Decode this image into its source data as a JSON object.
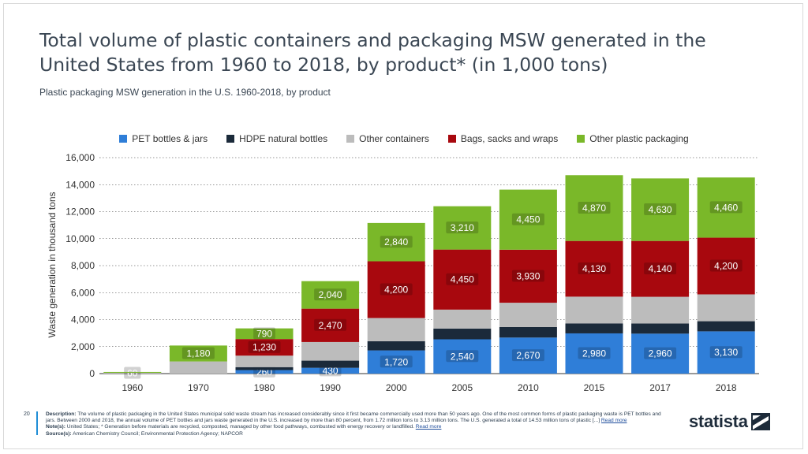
{
  "title": "Total volume of plastic containers and packaging MSW generated in the United States from 1960 to 2018, by product* (in 1,000 tons)",
  "subtitle": "Plastic packaging MSW generation in the U.S. 1960-2018, by product",
  "footer": {
    "page_number": "20",
    "description_label": "Description:",
    "description": "The volume of plastic packaging in the United States municipal solid waste stream has increased considerably since it first became commercially used more than 50 years ago. One of the most common forms of plastic packaging waste is PET bottles and jars. Between 2000 and 2018, the annual volume of PET bottles and jars waste generated in the U.S. increased by more than 80 percent, from 1.72 million tons to 3.13 million tons. The U.S. generated a total of 14.53 million tons of plastic [...]",
    "read_more": "Read more",
    "notes_label": "Note(s):",
    "notes": "United States; * Generation before materials are recycled, composted, managed by other food pathways, combusted with energy recovery or landfilled.",
    "notes_read_more": "Read more",
    "sources_label": "Source(s):",
    "sources": "American Chemistry Council; Environmental Protection Agency; NAPCOR"
  },
  "logo": {
    "text": "statista"
  },
  "chart_data": {
    "type": "bar",
    "stacked": true,
    "categories": [
      "1960",
      "1970",
      "1980",
      "1990",
      "2000",
      "2005",
      "2010",
      "2015",
      "2017",
      "2018"
    ],
    "ylabel": "Waste generation in thousand tons",
    "xlabel": "",
    "ylim": [
      0,
      16000
    ],
    "yticks": [
      0,
      2000,
      4000,
      6000,
      8000,
      10000,
      12000,
      14000,
      16000
    ],
    "ytick_labels": [
      "0",
      "2,000",
      "4,000",
      "6,000",
      "8,000",
      "10,000",
      "12,000",
      "14,000",
      "16,000"
    ],
    "grid": true,
    "legend_position": "top-center",
    "series": [
      {
        "name": "PET bottles & jars",
        "color": "#2f7ed8",
        "values": [
          0,
          0,
          260,
          430,
          1720,
          2540,
          2670,
          2980,
          2960,
          3130
        ],
        "labels": [
          "",
          "",
          "260",
          "430",
          "1,720",
          "2,540",
          "2,670",
          "2,980",
          "2,960",
          "3,130"
        ]
      },
      {
        "name": "HDPE natural bottles",
        "color": "#1b2a3a",
        "values": [
          0,
          0,
          220,
          530,
          680,
          800,
          780,
          740,
          750,
          750
        ],
        "labels": [
          "",
          "",
          "",
          "",
          "",
          "",
          "",
          "",
          "",
          ""
        ]
      },
      {
        "name": "Other containers",
        "color": "#bcbcbc",
        "values": [
          60,
          900,
          850,
          1380,
          1720,
          1400,
          1800,
          1980,
          1980,
          1990
        ],
        "labels": [
          "60",
          "",
          "",
          "",
          "",
          "",
          "",
          "",
          "",
          ""
        ]
      },
      {
        "name": "Bags, sacks and wraps",
        "color": "#a8080e",
        "values": [
          0,
          0,
          1230,
          2470,
          4200,
          4450,
          3930,
          4130,
          4140,
          4200
        ],
        "labels": [
          "",
          "",
          "1,230",
          "2,470",
          "4,200",
          "4,450",
          "3,930",
          "4,130",
          "4,140",
          "4,200"
        ]
      },
      {
        "name": "Other plastic packaging",
        "color": "#7ab829",
        "values": [
          60,
          1180,
          790,
          2040,
          2840,
          3210,
          4450,
          4870,
          4630,
          4460
        ],
        "labels": [
          "",
          "1,180",
          "790",
          "2,040",
          "2,840",
          "3,210",
          "4,450",
          "4,870",
          "4,630",
          "4,460"
        ]
      }
    ]
  }
}
